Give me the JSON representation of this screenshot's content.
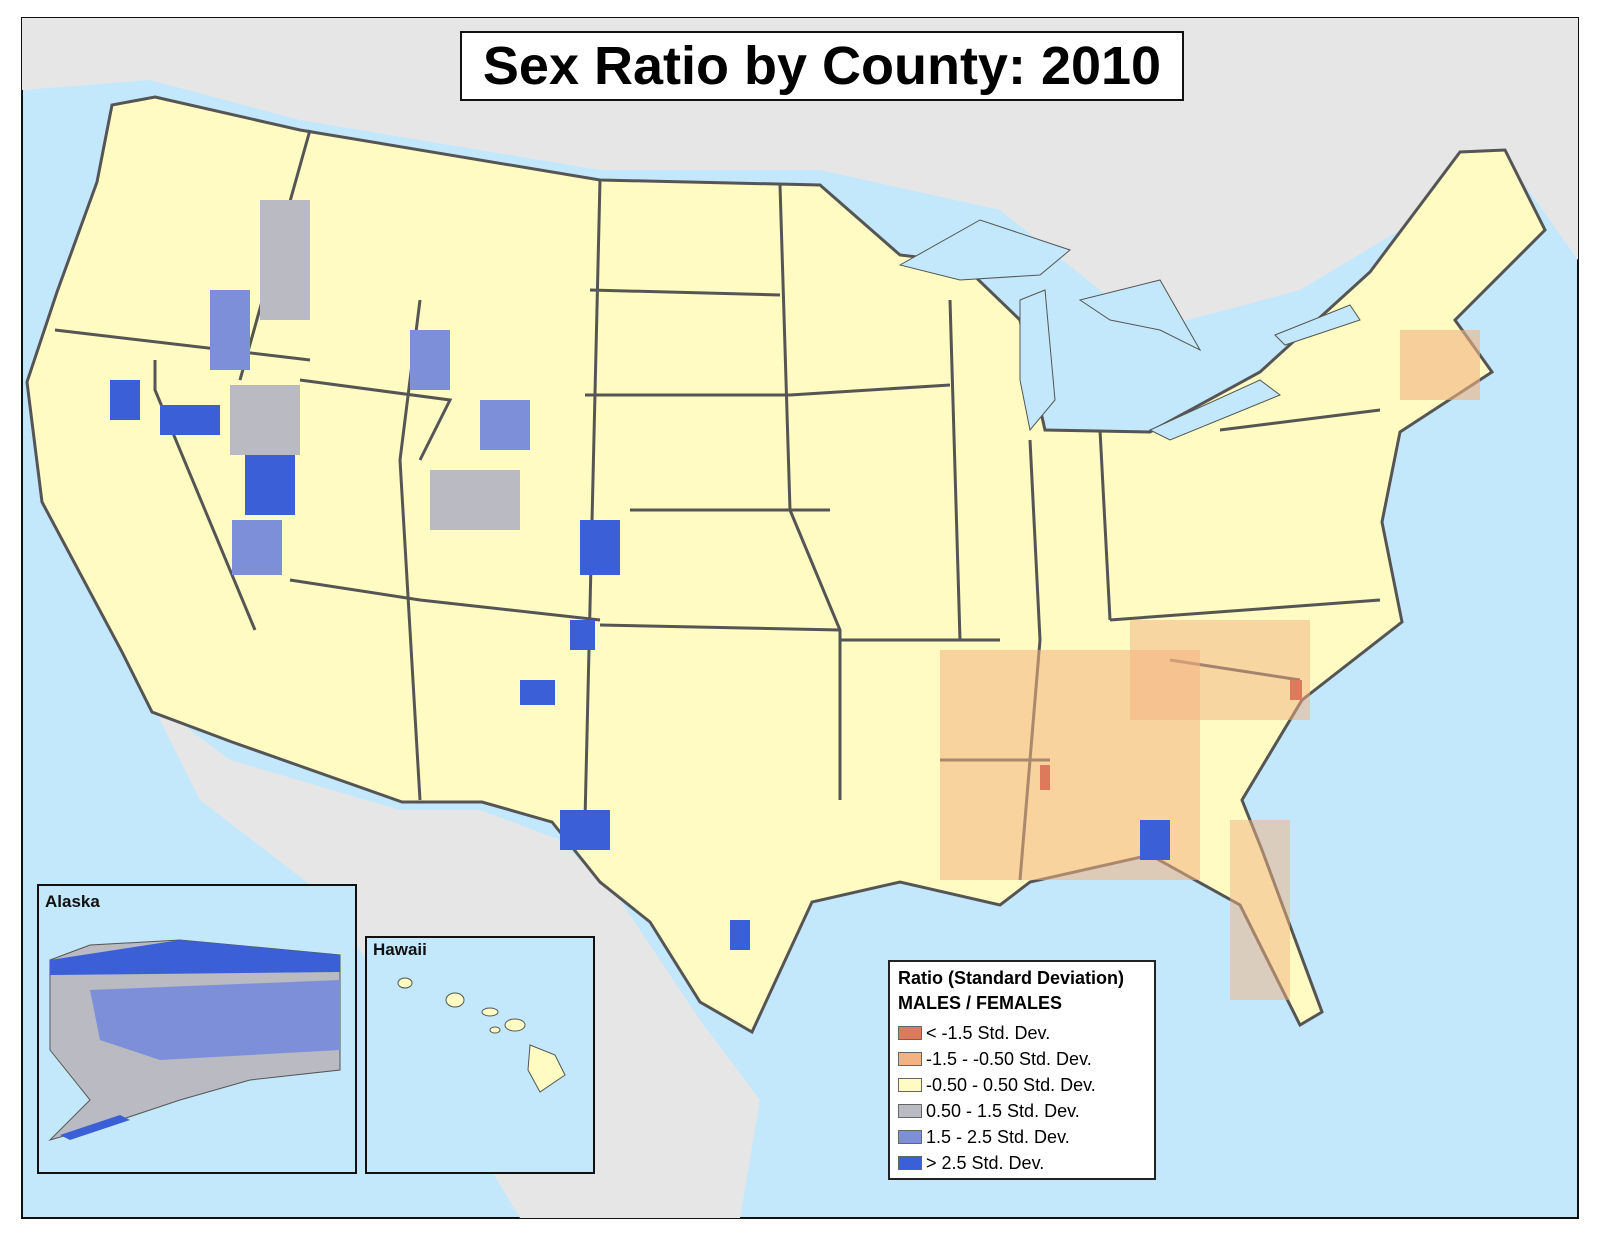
{
  "title": "Sex Ratio by County: 2010",
  "insets": {
    "alaska": "Alaska",
    "hawaii": "Hawaii"
  },
  "colors": {
    "ocean": "#c3e8fb",
    "foreign_land": "#e6e6e6",
    "border": "#555555"
  },
  "legend": {
    "title": "Ratio (Standard Deviation)",
    "subtitle": "MALES / FEMALES",
    "items": [
      {
        "label": "< -1.5 Std. Dev.",
        "color": "#dd7a5c"
      },
      {
        "label": "-1.5 - -0.50 Std. Dev.",
        "color": "#f2b281"
      },
      {
        "label": "-0.50 - 0.50 Std. Dev.",
        "color": "#fffbc2"
      },
      {
        "label": "0.50 - 1.5 Std. Dev.",
        "color": "#b9bac2"
      },
      {
        "label": "1.5 - 2.5 Std. Dev.",
        "color": "#7d8fd8"
      },
      {
        "label": "> 2.5 Std. Dev.",
        "color": "#3a5fd6"
      }
    ]
  }
}
